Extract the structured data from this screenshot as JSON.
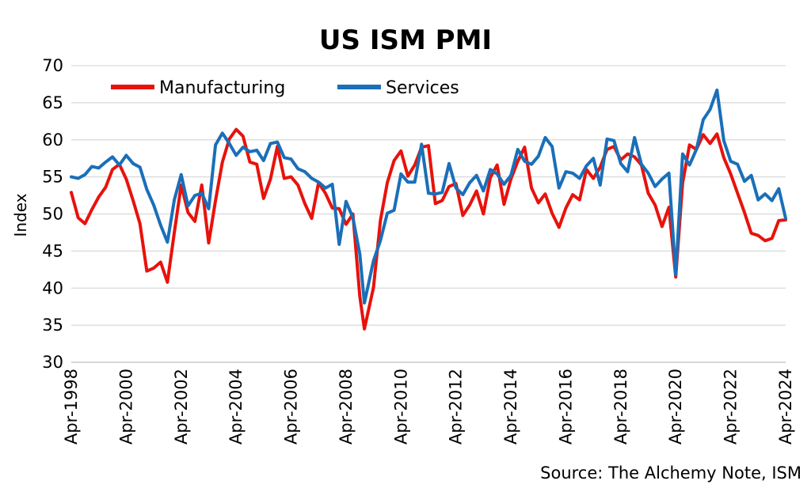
{
  "chart_data": {
    "type": "line",
    "title": "US ISM PMI",
    "ylabel": "Index",
    "xlabel": "",
    "source": "Source: The Alchemy Note, ISM",
    "ylim": [
      30,
      70
    ],
    "yticks": [
      "30",
      "35",
      "40",
      "45",
      "50",
      "55",
      "60",
      "65",
      "70"
    ],
    "xlim": [
      "Apr-1998",
      "Apr-2024"
    ],
    "xticks": [
      "Apr-1998",
      "Apr-2000",
      "Apr-2002",
      "Apr-2004",
      "Apr-2006",
      "Apr-2008",
      "Apr-2010",
      "Apr-2012",
      "Apr-2014",
      "Apr-2016",
      "Apr-2018",
      "Apr-2020",
      "Apr-2022",
      "Apr-2024"
    ],
    "grid": "horizontal",
    "legend": "top-left",
    "series": [
      {
        "name": "Manufacturing",
        "color": "#e8120c",
        "points": [
          [
            "1998-04",
            52.9
          ],
          [
            "1998-07",
            49.5
          ],
          [
            "1998-10",
            48.7
          ],
          [
            "1999-01",
            50.6
          ],
          [
            "1999-04",
            52.3
          ],
          [
            "1999-07",
            53.6
          ],
          [
            "1999-10",
            56.0
          ],
          [
            "2000-01",
            56.7
          ],
          [
            "2000-04",
            54.7
          ],
          [
            "2000-07",
            51.8
          ],
          [
            "2000-10",
            48.7
          ],
          [
            "2001-01",
            42.3
          ],
          [
            "2001-04",
            42.7
          ],
          [
            "2001-07",
            43.5
          ],
          [
            "2001-10",
            40.8
          ],
          [
            "2002-01",
            47.5
          ],
          [
            "2002-04",
            53.9
          ],
          [
            "2002-07",
            50.2
          ],
          [
            "2002-10",
            49.0
          ],
          [
            "2003-01",
            53.9
          ],
          [
            "2003-04",
            46.1
          ],
          [
            "2003-07",
            51.8
          ],
          [
            "2003-10",
            57.0
          ],
          [
            "2004-01",
            60.1
          ],
          [
            "2004-04",
            61.4
          ],
          [
            "2004-07",
            60.5
          ],
          [
            "2004-10",
            57.0
          ],
          [
            "2005-01",
            56.7
          ],
          [
            "2005-04",
            52.1
          ],
          [
            "2005-07",
            54.7
          ],
          [
            "2005-10",
            59.1
          ],
          [
            "2006-01",
            54.8
          ],
          [
            "2006-04",
            55.0
          ],
          [
            "2006-07",
            53.9
          ],
          [
            "2006-10",
            51.4
          ],
          [
            "2007-01",
            49.4
          ],
          [
            "2007-04",
            54.2
          ],
          [
            "2007-07",
            52.8
          ],
          [
            "2007-10",
            50.8
          ],
          [
            "2008-01",
            50.7
          ],
          [
            "2008-04",
            48.6
          ],
          [
            "2008-07",
            50.0
          ],
          [
            "2008-10",
            38.9
          ],
          [
            "2008-12",
            34.5
          ],
          [
            "2009-04",
            40.1
          ],
          [
            "2009-07",
            49.1
          ],
          [
            "2009-10",
            54.2
          ],
          [
            "2010-01",
            57.2
          ],
          [
            "2010-04",
            58.5
          ],
          [
            "2010-07",
            55.1
          ],
          [
            "2010-10",
            56.6
          ],
          [
            "2011-01",
            59.0
          ],
          [
            "2011-04",
            59.2
          ],
          [
            "2011-07",
            51.4
          ],
          [
            "2011-10",
            51.8
          ],
          [
            "2012-01",
            53.7
          ],
          [
            "2012-04",
            54.1
          ],
          [
            "2012-07",
            49.8
          ],
          [
            "2012-10",
            51.2
          ],
          [
            "2013-01",
            53.1
          ],
          [
            "2013-04",
            50.0
          ],
          [
            "2013-07",
            54.9
          ],
          [
            "2013-10",
            56.6
          ],
          [
            "2014-01",
            51.3
          ],
          [
            "2014-04",
            54.7
          ],
          [
            "2014-07",
            57.1
          ],
          [
            "2014-10",
            59.0
          ],
          [
            "2015-01",
            53.5
          ],
          [
            "2015-04",
            51.5
          ],
          [
            "2015-07",
            52.7
          ],
          [
            "2015-10",
            50.1
          ],
          [
            "2016-01",
            48.2
          ],
          [
            "2016-04",
            50.8
          ],
          [
            "2016-07",
            52.6
          ],
          [
            "2016-10",
            51.9
          ],
          [
            "2017-01",
            56.0
          ],
          [
            "2017-04",
            54.8
          ],
          [
            "2017-07",
            56.3
          ],
          [
            "2017-10",
            58.7
          ],
          [
            "2018-01",
            59.1
          ],
          [
            "2018-04",
            57.3
          ],
          [
            "2018-07",
            58.1
          ],
          [
            "2018-10",
            57.7
          ],
          [
            "2019-01",
            56.6
          ],
          [
            "2019-04",
            52.8
          ],
          [
            "2019-07",
            51.2
          ],
          [
            "2019-10",
            48.3
          ],
          [
            "2020-01",
            50.9
          ],
          [
            "2020-04",
            41.5
          ],
          [
            "2020-07",
            54.2
          ],
          [
            "2020-10",
            59.3
          ],
          [
            "2021-01",
            58.7
          ],
          [
            "2021-04",
            60.7
          ],
          [
            "2021-07",
            59.5
          ],
          [
            "2021-10",
            60.8
          ],
          [
            "2022-01",
            57.6
          ],
          [
            "2022-04",
            55.4
          ],
          [
            "2022-07",
            52.8
          ],
          [
            "2022-10",
            50.2
          ],
          [
            "2023-01",
            47.4
          ],
          [
            "2023-04",
            47.1
          ],
          [
            "2023-07",
            46.4
          ],
          [
            "2023-10",
            46.7
          ],
          [
            "2024-01",
            49.1
          ],
          [
            "2024-04",
            49.2
          ]
        ]
      },
      {
        "name": "Services",
        "color": "#1a6fb8",
        "points": [
          [
            "1998-04",
            55.0
          ],
          [
            "1998-07",
            54.8
          ],
          [
            "1998-10",
            55.3
          ],
          [
            "1999-01",
            56.4
          ],
          [
            "1999-04",
            56.2
          ],
          [
            "1999-07",
            57.0
          ],
          [
            "1999-10",
            57.7
          ],
          [
            "2000-01",
            56.6
          ],
          [
            "2000-04",
            57.9
          ],
          [
            "2000-07",
            56.8
          ],
          [
            "2000-10",
            56.3
          ],
          [
            "2001-01",
            53.3
          ],
          [
            "2001-04",
            51.2
          ],
          [
            "2001-07",
            48.5
          ],
          [
            "2001-10",
            46.2
          ],
          [
            "2002-01",
            51.9
          ],
          [
            "2002-04",
            55.3
          ],
          [
            "2002-07",
            51.1
          ],
          [
            "2002-10",
            52.5
          ],
          [
            "2003-01",
            52.8
          ],
          [
            "2003-04",
            50.7
          ],
          [
            "2003-07",
            59.3
          ],
          [
            "2003-10",
            60.9
          ],
          [
            "2004-01",
            59.5
          ],
          [
            "2004-04",
            57.9
          ],
          [
            "2004-07",
            59.0
          ],
          [
            "2004-10",
            58.4
          ],
          [
            "2005-01",
            58.6
          ],
          [
            "2005-04",
            57.2
          ],
          [
            "2005-07",
            59.5
          ],
          [
            "2005-10",
            59.7
          ],
          [
            "2006-01",
            57.6
          ],
          [
            "2006-04",
            57.4
          ],
          [
            "2006-07",
            56.1
          ],
          [
            "2006-10",
            55.7
          ],
          [
            "2007-01",
            54.8
          ],
          [
            "2007-04",
            54.3
          ],
          [
            "2007-07",
            53.5
          ],
          [
            "2007-10",
            54.0
          ],
          [
            "2008-01",
            45.9
          ],
          [
            "2008-04",
            51.7
          ],
          [
            "2008-07",
            49.5
          ],
          [
            "2008-10",
            44.6
          ],
          [
            "2008-12",
            38.0
          ],
          [
            "2009-04",
            43.7
          ],
          [
            "2009-07",
            46.4
          ],
          [
            "2009-10",
            50.1
          ],
          [
            "2010-01",
            50.5
          ],
          [
            "2010-04",
            55.4
          ],
          [
            "2010-07",
            54.3
          ],
          [
            "2010-10",
            54.3
          ],
          [
            "2011-01",
            59.4
          ],
          [
            "2011-04",
            52.8
          ],
          [
            "2011-07",
            52.7
          ],
          [
            "2011-10",
            52.9
          ],
          [
            "2012-01",
            56.8
          ],
          [
            "2012-04",
            53.5
          ],
          [
            "2012-07",
            52.6
          ],
          [
            "2012-10",
            54.2
          ],
          [
            "2013-01",
            55.2
          ],
          [
            "2013-04",
            53.1
          ],
          [
            "2013-07",
            56.0
          ],
          [
            "2013-10",
            55.4
          ],
          [
            "2014-01",
            54.0
          ],
          [
            "2014-04",
            55.2
          ],
          [
            "2014-07",
            58.7
          ],
          [
            "2014-10",
            57.1
          ],
          [
            "2015-01",
            56.7
          ],
          [
            "2015-04",
            57.8
          ],
          [
            "2015-07",
            60.3
          ],
          [
            "2015-10",
            59.1
          ],
          [
            "2016-01",
            53.5
          ],
          [
            "2016-04",
            55.7
          ],
          [
            "2016-07",
            55.5
          ],
          [
            "2016-10",
            54.8
          ],
          [
            "2017-01",
            56.5
          ],
          [
            "2017-04",
            57.5
          ],
          [
            "2017-07",
            53.9
          ],
          [
            "2017-10",
            60.1
          ],
          [
            "2018-01",
            59.9
          ],
          [
            "2018-04",
            56.8
          ],
          [
            "2018-07",
            55.7
          ],
          [
            "2018-10",
            60.3
          ],
          [
            "2019-01",
            56.7
          ],
          [
            "2019-04",
            55.5
          ],
          [
            "2019-07",
            53.7
          ],
          [
            "2019-10",
            54.7
          ],
          [
            "2020-01",
            55.5
          ],
          [
            "2020-04",
            41.8
          ],
          [
            "2020-07",
            58.1
          ],
          [
            "2020-10",
            56.6
          ],
          [
            "2021-01",
            58.7
          ],
          [
            "2021-04",
            62.7
          ],
          [
            "2021-07",
            64.1
          ],
          [
            "2021-10",
            66.7
          ],
          [
            "2022-01",
            59.9
          ],
          [
            "2022-04",
            57.1
          ],
          [
            "2022-07",
            56.7
          ],
          [
            "2022-10",
            54.4
          ],
          [
            "2023-01",
            55.2
          ],
          [
            "2023-04",
            51.9
          ],
          [
            "2023-07",
            52.7
          ],
          [
            "2023-10",
            51.8
          ],
          [
            "2024-01",
            53.4
          ],
          [
            "2024-04",
            49.4
          ]
        ]
      }
    ]
  }
}
